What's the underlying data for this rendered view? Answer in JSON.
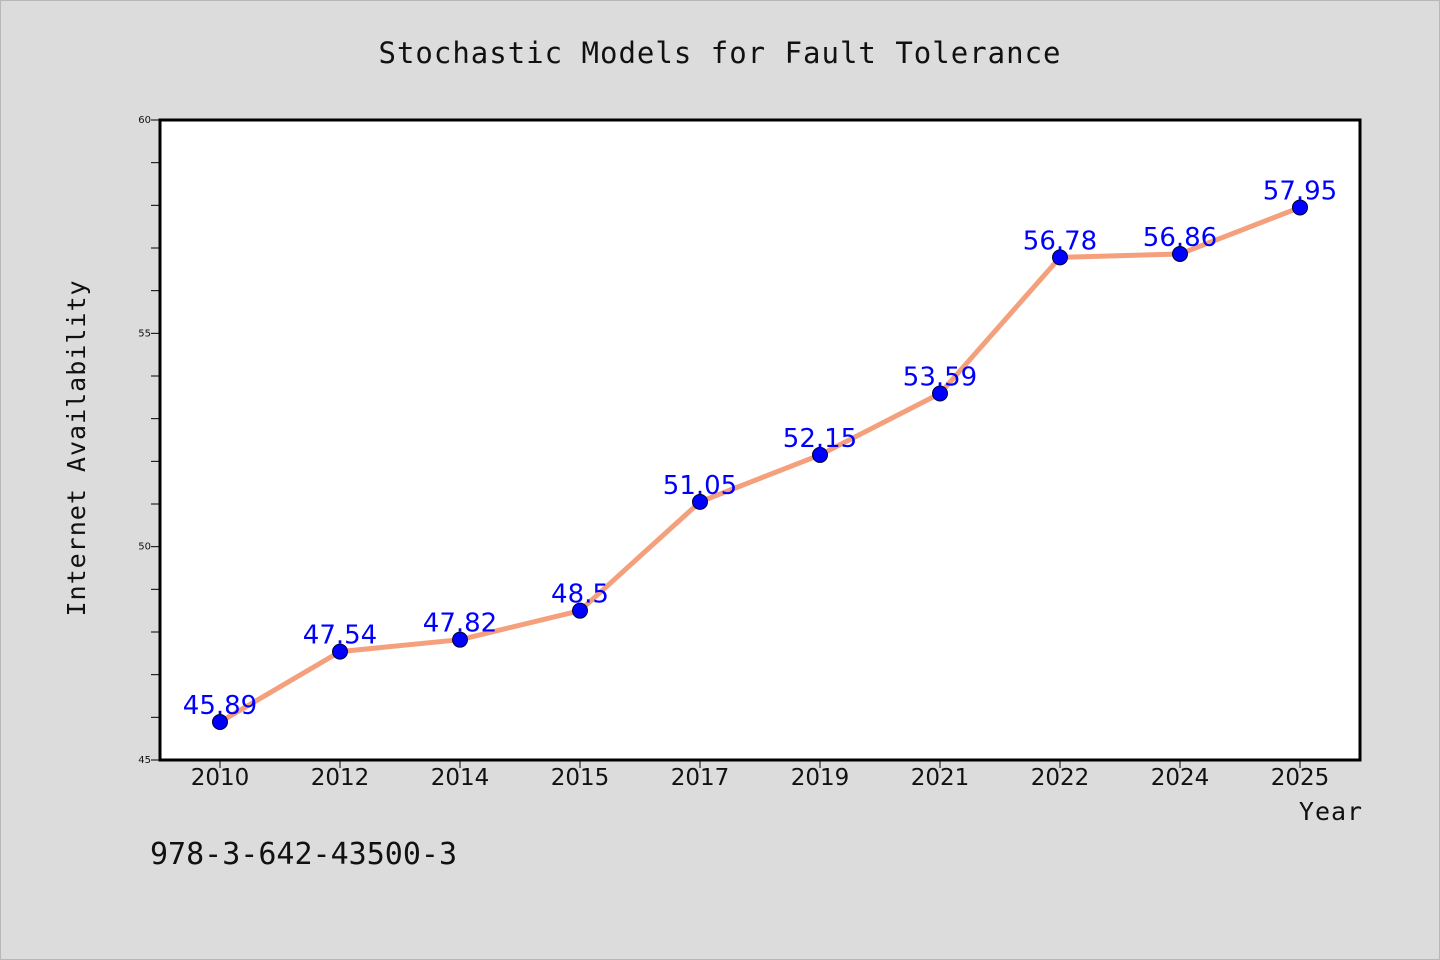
{
  "chart_data": {
    "type": "line",
    "title": "Stochastic Models for Fault Tolerance",
    "xlabel": "Year",
    "ylabel": "Internet Availability",
    "categories": [
      "2010",
      "2012",
      "2014",
      "2015",
      "2017",
      "2019",
      "2021",
      "2022",
      "2024",
      "2025"
    ],
    "series": [
      {
        "values": [
          45.89,
          47.54,
          47.82,
          48.5,
          51.05,
          52.15,
          53.59,
          56.78,
          56.86,
          57.95
        ],
        "labels": [
          "45.89",
          "47.54",
          "47.82",
          "48.5",
          "51.05",
          "52.15",
          "53.59",
          "56.78",
          "56.86",
          "57.95"
        ]
      }
    ],
    "ylim": [
      45,
      60
    ],
    "yticks": [
      "45",
      "50",
      "55",
      "60"
    ],
    "grid": false,
    "legend": "none"
  },
  "footer": {
    "isbn": "978-3-642-43500-3"
  },
  "colors": {
    "line": "#f4a07c",
    "marker": "#0000ff",
    "label": "#0000ff",
    "background": "#dcdcdc",
    "plot_background": "#ffffff"
  }
}
